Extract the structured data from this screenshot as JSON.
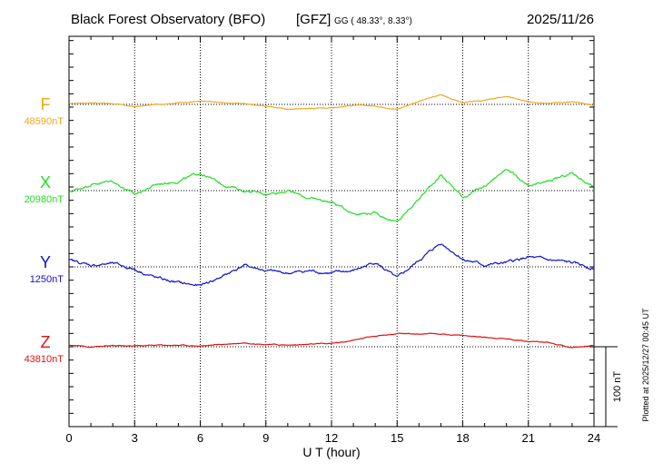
{
  "header": {
    "observatory": "Black Forest Observatory (BFO)",
    "institute": "[GFZ]",
    "coords": "GG ( 48.33°,   8.33°)",
    "date": "2025/11/26"
  },
  "side_note": "Plotted at 2025/12/27 00:45 UT",
  "scale_label": "100 nT",
  "chart_data": {
    "type": "line",
    "xlabel": "U T (hour)",
    "xlim": [
      0,
      24
    ],
    "xticks": [
      "0",
      "3",
      "6",
      "9",
      "12",
      "15",
      "18",
      "21",
      "24"
    ],
    "grid": true,
    "scale_bar_nT": 100,
    "series": [
      {
        "name": "F",
        "baseline": "48590nT",
        "color": "#f0a818",
        "hours": [
          0,
          1,
          2,
          3,
          4,
          5,
          6,
          7,
          8,
          9,
          10,
          11,
          12,
          13,
          14,
          15,
          16,
          17,
          18,
          19,
          20,
          21,
          22,
          23,
          24
        ],
        "nT": [
          1,
          2,
          1,
          -3,
          0,
          2,
          4,
          2,
          1,
          -2,
          -6,
          -5,
          -4,
          -1,
          -2,
          -6,
          4,
          12,
          2,
          5,
          10,
          3,
          2,
          3,
          -1
        ]
      },
      {
        "name": "X",
        "baseline": "20980nT",
        "color": "#22dd22",
        "hours": [
          0,
          1,
          2,
          3,
          4,
          5,
          6,
          7,
          8,
          9,
          10,
          11,
          12,
          13,
          14,
          15,
          16,
          17,
          18,
          19,
          20,
          21,
          22,
          23,
          24
        ],
        "nT": [
          -2,
          8,
          12,
          -5,
          8,
          12,
          22,
          8,
          0,
          -4,
          0,
          -10,
          -14,
          -28,
          -28,
          -40,
          -10,
          20,
          -8,
          5,
          28,
          4,
          12,
          22,
          5
        ]
      },
      {
        "name": "Y",
        "baseline": "1250nT",
        "color": "#1010cc",
        "hours": [
          0,
          1,
          2,
          3,
          4,
          5,
          6,
          7,
          8,
          9,
          10,
          11,
          12,
          13,
          14,
          15,
          16,
          17,
          18,
          19,
          20,
          21,
          22,
          23,
          24
        ],
        "nT": [
          8,
          2,
          4,
          -3,
          -14,
          -20,
          -24,
          -12,
          2,
          -5,
          -8,
          -5,
          -8,
          -5,
          6,
          -15,
          8,
          30,
          10,
          2,
          5,
          12,
          8,
          5,
          -2
        ]
      },
      {
        "name": "Z",
        "baseline": "43810nT",
        "color": "#e01010",
        "hours": [
          0,
          1,
          2,
          3,
          4,
          5,
          6,
          7,
          8,
          9,
          10,
          11,
          12,
          13,
          14,
          15,
          16,
          17,
          18,
          19,
          20,
          21,
          22,
          23,
          24
        ],
        "nT": [
          2,
          0,
          1,
          1,
          2,
          2,
          1,
          3,
          5,
          3,
          2,
          3,
          4,
          8,
          14,
          16,
          16,
          16,
          14,
          12,
          10,
          7,
          5,
          -1,
          2
        ]
      }
    ]
  }
}
